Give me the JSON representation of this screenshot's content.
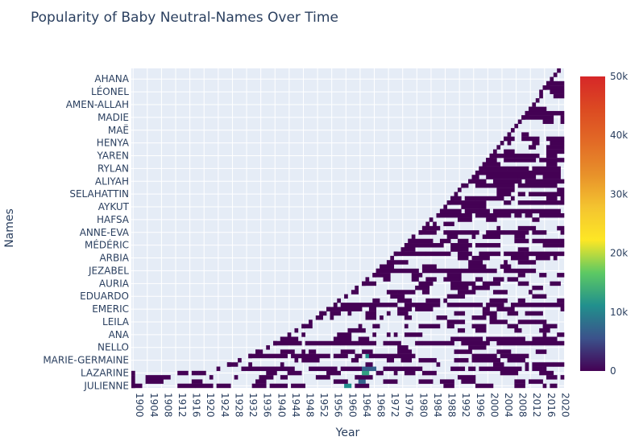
{
  "chart_data": {
    "type": "heatmap",
    "title": "Popularity of Baby Neutral-Names Over Time",
    "xlabel": "Year",
    "ylabel": "Names",
    "x_range": [
      1900,
      2021
    ],
    "x_ticks": [
      1900,
      1904,
      1908,
      1912,
      1916,
      1920,
      1924,
      1928,
      1932,
      1936,
      1940,
      1944,
      1948,
      1952,
      1956,
      1960,
      1964,
      1968,
      1972,
      1976,
      1980,
      1984,
      1988,
      1992,
      1996,
      2000,
      2004,
      2008,
      2012,
      2016,
      2020
    ],
    "y_tick_labels": [
      "JULIENNE",
      "LAZARINE",
      "MARIE-GERMAINE",
      "NELLO",
      "ANA",
      "LEILA",
      "EMERIC",
      "EDUARDO",
      "AURIA",
      "JEZABEL",
      "ARBIA",
      "MÉDÉRIC",
      "ANNE-EVA",
      "HAFSA",
      "AYKUT",
      "SELAHATTIN",
      "ALIYAH",
      "RYLAN",
      "YAREN",
      "HENYA",
      "MAË",
      "MADIE",
      "AMEN-ALLAH",
      "LÉONEL",
      "AHANA"
    ],
    "colorbar": {
      "min": 0,
      "max": 50000,
      "tick_labels": [
        "0",
        "10k",
        "20k",
        "30k",
        "40k",
        "50k"
      ],
      "tick_values": [
        0,
        10000,
        20000,
        30000,
        40000,
        50000
      ],
      "colorscale": [
        "#440154",
        "#3b528b",
        "#21908d",
        "#5dc963",
        "#fde725",
        "#f4c430",
        "#e8912a",
        "#e26a26",
        "#dc4a22",
        "#d62728"
      ]
    },
    "pattern": "Each name row is filled from the first year it appears; first-appearance year rises along a convex curve from about 1900 at the bottom rows to about 2020 at the top rows. Values are mostly near 0 (dark purple) with rare cells near 10k around 1960-1970 in the lower rows."
  }
}
